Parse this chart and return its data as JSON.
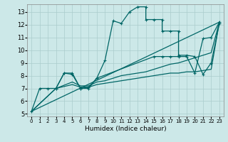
{
  "title": "",
  "xlabel": "Humidex (Indice chaleur)",
  "bg_color": "#cce8e8",
  "grid_color": "#aacccc",
  "line_color": "#006666",
  "xlim": [
    -0.5,
    23.5
  ],
  "ylim": [
    4.8,
    13.6
  ],
  "yticks": [
    5,
    6,
    7,
    8,
    9,
    10,
    11,
    12,
    13
  ],
  "xticks": [
    0,
    1,
    2,
    3,
    4,
    5,
    6,
    7,
    8,
    9,
    10,
    11,
    12,
    13,
    14,
    15,
    16,
    17,
    18,
    19,
    20,
    21,
    22,
    23
  ],
  "series": [
    {
      "x": [
        0,
        1,
        2,
        3,
        4,
        5,
        6,
        7,
        8,
        9,
        10,
        11,
        12,
        13,
        14,
        14,
        15,
        16,
        16,
        17,
        18,
        18,
        19,
        20,
        21,
        22,
        23
      ],
      "y": [
        5.2,
        7.0,
        7.0,
        7.0,
        8.2,
        8.2,
        7.0,
        7.0,
        7.8,
        9.2,
        12.3,
        12.1,
        13.0,
        13.4,
        13.4,
        12.4,
        12.4,
        12.4,
        11.5,
        11.5,
        11.5,
        9.6,
        9.6,
        9.5,
        8.1,
        9.0,
        12.1
      ],
      "style": "line_marker"
    },
    {
      "x": [
        0,
        23
      ],
      "y": [
        5.2,
        12.2
      ],
      "style": "straight"
    },
    {
      "x": [
        0,
        3,
        5,
        6,
        7,
        8,
        9,
        10,
        11,
        12,
        13,
        14,
        15,
        16,
        17,
        18,
        19,
        20,
        21,
        22,
        23
      ],
      "y": [
        5.2,
        7.0,
        7.5,
        7.2,
        7.2,
        7.5,
        7.6,
        7.8,
        8.0,
        8.1,
        8.2,
        8.3,
        8.5,
        8.7,
        8.9,
        9.0,
        9.2,
        9.4,
        9.6,
        9.8,
        12.2
      ],
      "style": "line_only"
    },
    {
      "x": [
        0,
        3,
        5,
        6,
        7,
        8,
        9,
        10,
        11,
        12,
        13,
        14,
        15,
        16,
        17,
        18,
        19,
        20,
        21,
        22,
        23
      ],
      "y": [
        5.2,
        7.0,
        7.3,
        7.1,
        7.1,
        7.3,
        7.4,
        7.5,
        7.6,
        7.7,
        7.8,
        7.9,
        8.0,
        8.1,
        8.2,
        8.2,
        8.3,
        8.3,
        8.4,
        8.5,
        12.2
      ],
      "style": "line_only"
    },
    {
      "x": [
        3,
        4,
        5,
        6,
        7,
        8,
        15,
        16,
        17,
        18,
        19,
        20,
        21,
        22,
        23
      ],
      "y": [
        7.0,
        8.2,
        8.1,
        7.0,
        7.1,
        7.8,
        9.5,
        9.5,
        9.5,
        9.5,
        9.5,
        8.2,
        10.9,
        11.0,
        12.2
      ],
      "style": "line_marker"
    }
  ]
}
